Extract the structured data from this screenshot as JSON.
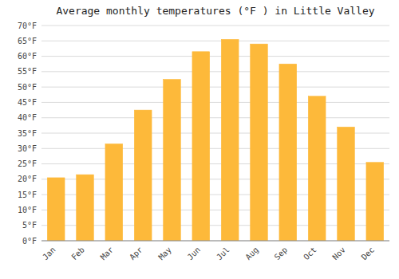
{
  "chart_data": {
    "type": "bar",
    "title": "Average monthly temperatures (°F ) in Little Valley",
    "categories": [
      "Jan",
      "Feb",
      "Mar",
      "Apr",
      "May",
      "Jun",
      "Jul",
      "Aug",
      "Sep",
      "Oct",
      "Nov",
      "Dec"
    ],
    "values": [
      20.5,
      21.5,
      31.5,
      42.5,
      52.5,
      61.5,
      65.5,
      64.0,
      57.5,
      47.0,
      37.0,
      25.5
    ],
    "color": "#FDB93A",
    "ylim": [
      0,
      70
    ],
    "yticks": [
      {
        "value": 0,
        "label": "0°F"
      },
      {
        "value": 5,
        "label": "5°F"
      },
      {
        "value": 10,
        "label": "10°F"
      },
      {
        "value": 15,
        "label": "15°F"
      },
      {
        "value": 20,
        "label": "20°F"
      },
      {
        "value": 25,
        "label": "25°F"
      },
      {
        "value": 30,
        "label": "30°F"
      },
      {
        "value": 35,
        "label": "35°F"
      },
      {
        "value": 40,
        "label": "40°F"
      },
      {
        "value": 45,
        "label": "45°F"
      },
      {
        "value": 50,
        "label": "50°F"
      },
      {
        "value": 55,
        "label": "55°F"
      },
      {
        "value": 60,
        "label": "60°F"
      },
      {
        "value": 65,
        "label": "65°F"
      },
      {
        "value": 70,
        "label": "70°F"
      }
    ],
    "grid": true
  }
}
